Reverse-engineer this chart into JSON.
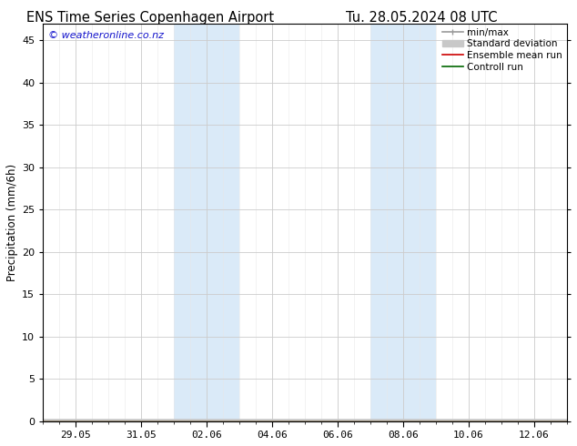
{
  "title_left": "ENS Time Series Copenhagen Airport",
  "title_right": "Tu. 28.05.2024 08 UTC",
  "ylabel": "Precipitation (mm/6h)",
  "watermark": "© weatheronline.co.nz",
  "watermark_color": "#1414cc",
  "ylim": [
    0,
    47
  ],
  "yticks": [
    0,
    5,
    10,
    15,
    20,
    25,
    30,
    35,
    40,
    45
  ],
  "xtick_labels": [
    "29.05",
    "31.05",
    "02.06",
    "04.06",
    "06.06",
    "08.06",
    "10.06",
    "12.06"
  ],
  "xtick_positions": [
    1,
    3,
    5,
    7,
    9,
    11,
    13,
    15
  ],
  "x_min": 0,
  "x_max": 16,
  "shaded_bands": [
    {
      "x_start": 4.0,
      "x_end": 6.0
    },
    {
      "x_start": 10.0,
      "x_end": 12.0
    }
  ],
  "shaded_color": "#daeaf8",
  "background_color": "#ffffff",
  "legend_entries": [
    {
      "label": "min/max",
      "color": "#999999",
      "lw": 1.2
    },
    {
      "label": "Standard deviation",
      "color": "#c8c8c8",
      "lw": 5
    },
    {
      "label": "Ensemble mean run",
      "color": "#cc0000",
      "lw": 1.2
    },
    {
      "label": "Controll run",
      "color": "#006600",
      "lw": 1.2
    }
  ],
  "spine_color": "#000000",
  "title_fontsize": 10.5,
  "axis_label_fontsize": 8.5,
  "tick_fontsize": 8,
  "legend_fontsize": 7.5,
  "watermark_fontsize": 8
}
